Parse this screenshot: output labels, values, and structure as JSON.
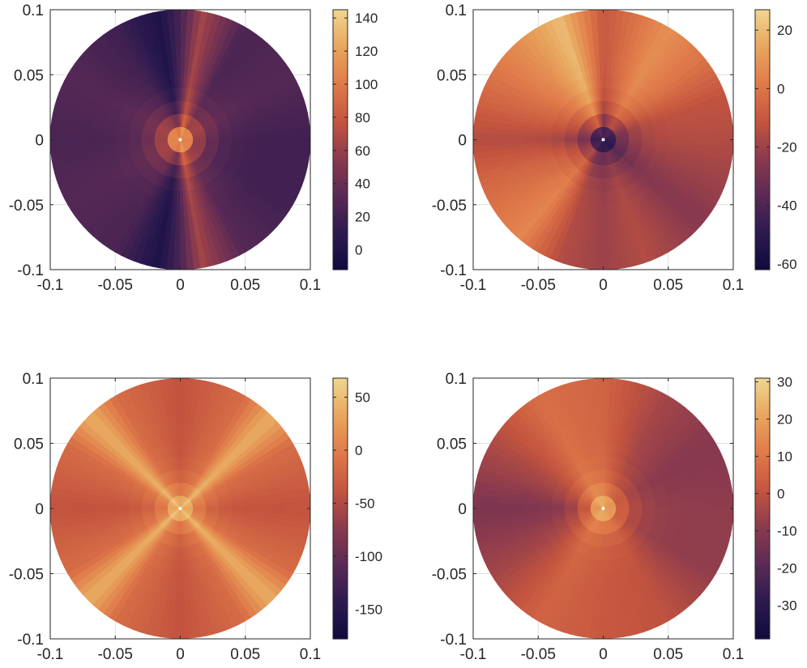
{
  "colormap": {
    "name": "dark-purple-orange-yellow",
    "stops": [
      "#0f0a3c",
      "#2c1a4f",
      "#5a2a55",
      "#8a3a4e",
      "#c4553f",
      "#e07a4a",
      "#e8a55d",
      "#f0d590"
    ]
  },
  "chart_data": [
    {
      "type": "heatmap",
      "title": "",
      "xlabel": "",
      "ylabel": "",
      "xlim": [
        -0.1,
        0.1
      ],
      "ylim": [
        -0.1,
        0.1
      ],
      "xticks": [
        "-0.1",
        "-0.05",
        "0",
        "0.05",
        "0.1"
      ],
      "yticks": [
        "-0.1",
        "-0.05",
        "0",
        "0.05",
        "0.1"
      ],
      "grid": true,
      "shape": "disk",
      "colorbar": {
        "clim": [
          -12,
          145
        ],
        "ticks": [
          0,
          20,
          40,
          60,
          80,
          100,
          120,
          140
        ]
      },
      "angular_profile": {
        "angles_deg": [
          0,
          30,
          60,
          80,
          90,
          100,
          120,
          150,
          180,
          210,
          240,
          260,
          270,
          280,
          300,
          330
        ],
        "values": [
          20,
          30,
          25,
          65,
          25,
          0,
          20,
          30,
          25,
          30,
          25,
          0,
          25,
          65,
          30,
          20
        ]
      },
      "center_value": 145
    },
    {
      "type": "heatmap",
      "title": "",
      "xlabel": "",
      "ylabel": "",
      "xlim": [
        -0.1,
        0.1
      ],
      "ylim": [
        -0.1,
        0.1
      ],
      "xticks": [
        "-0.1",
        "-0.05",
        "0",
        "0.05",
        "0.1"
      ],
      "yticks": [
        "-0.1",
        "-0.05",
        "0",
        "0.05",
        "0.1"
      ],
      "grid": true,
      "shape": "disk",
      "colorbar": {
        "clim": [
          -62,
          27
        ],
        "ticks": [
          -60,
          -40,
          -20,
          0,
          20
        ]
      },
      "angular_profile": {
        "angles_deg": [
          0,
          20,
          40,
          60,
          90,
          110,
          130,
          160,
          180,
          200,
          230,
          250,
          270,
          290,
          320,
          340
        ],
        "values": [
          -15,
          -12,
          0,
          8,
          -10,
          20,
          8,
          -5,
          -15,
          -5,
          5,
          -15,
          -20,
          -15,
          -25,
          -20
        ]
      },
      "center_value": -62
    },
    {
      "type": "heatmap",
      "title": "",
      "xlabel": "",
      "ylabel": "",
      "xlim": [
        -0.1,
        0.1
      ],
      "ylim": [
        -0.1,
        0.1
      ],
      "xticks": [
        "-0.1",
        "-0.05",
        "0",
        "0.05",
        "0.1"
      ],
      "yticks": [
        "-0.1",
        "-0.05",
        "0",
        "0.05",
        "0.1"
      ],
      "grid": true,
      "shape": "disk",
      "colorbar": {
        "clim": [
          -178,
          68
        ],
        "ticks": [
          -150,
          -100,
          -50,
          0,
          50
        ]
      },
      "angular_profile": {
        "angles_deg": [
          0,
          30,
          45,
          60,
          90,
          120,
          135,
          150,
          180,
          210,
          225,
          240,
          270,
          300,
          315,
          330
        ],
        "values": [
          -40,
          -15,
          40,
          -15,
          -40,
          -15,
          40,
          -15,
          -40,
          -15,
          40,
          -15,
          -40,
          -15,
          40,
          -15
        ]
      },
      "center_value": 68
    },
    {
      "type": "heatmap",
      "title": "",
      "xlabel": "",
      "ylabel": "",
      "xlim": [
        -0.1,
        0.1
      ],
      "ylim": [
        -0.1,
        0.1
      ],
      "xticks": [
        "-0.1",
        "-0.05",
        "0",
        "0.05",
        "0.1"
      ],
      "yticks": [
        "-0.1",
        "-0.05",
        "0",
        "0.05",
        "0.1"
      ],
      "grid": true,
      "shape": "disk",
      "colorbar": {
        "clim": [
          -39,
          31
        ],
        "ticks": [
          -30,
          -20,
          -10,
          0,
          10,
          20,
          30
        ]
      },
      "angular_profile": {
        "angles_deg": [
          0,
          30,
          60,
          90,
          120,
          150,
          180,
          210,
          240,
          270,
          300,
          330
        ],
        "values": [
          -8,
          -10,
          -5,
          5,
          8,
          -3,
          -12,
          -5,
          5,
          2,
          0,
          -8
        ]
      },
      "center_value": 31
    }
  ]
}
